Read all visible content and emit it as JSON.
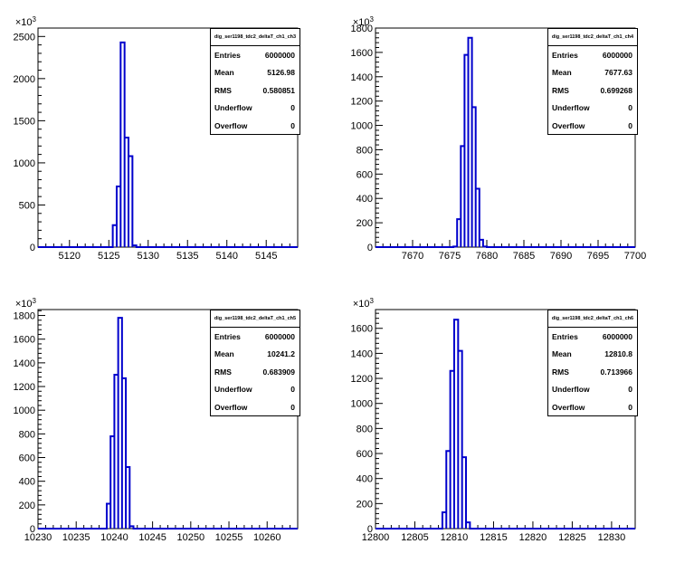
{
  "chart_data": [
    {
      "type": "histogram",
      "title": "",
      "xlabel": "",
      "ylabel": "",
      "y_multiplier": "×10^3",
      "xlim": [
        5116,
        5149
      ],
      "xticks": [
        5120,
        5125,
        5130,
        5135,
        5140,
        5145
      ],
      "ylim": [
        0,
        2600
      ],
      "yticks": [
        0,
        500,
        1000,
        1500,
        2000,
        2500
      ],
      "bins": [
        {
          "x": [
            5125.5,
            5126.0
          ],
          "y": 260
        },
        {
          "x": [
            5126.0,
            5126.5
          ],
          "y": 720
        },
        {
          "x": [
            5126.5,
            5127.0
          ],
          "y": 2430
        },
        {
          "x": [
            5127.0,
            5127.5
          ],
          "y": 1300
        },
        {
          "x": [
            5127.5,
            5128.0
          ],
          "y": 1080
        },
        {
          "x": [
            5128.0,
            5128.5
          ],
          "y": 20
        }
      ],
      "stats": {
        "name": "dig_ser1198_tdc2_deltaT_ch1_ch3",
        "entries": "6000000",
        "mean": "5126.98",
        "rms": "0.580851",
        "underflow": "0",
        "overflow": "0"
      }
    },
    {
      "type": "histogram",
      "title": "",
      "xlabel": "",
      "ylabel": "",
      "y_multiplier": "×10^3",
      "xlim": [
        7665,
        7700
      ],
      "xticks": [
        7670,
        7675,
        7680,
        7685,
        7690,
        7695,
        7700
      ],
      "ylim": [
        0,
        1800
      ],
      "yticks": [
        0,
        200,
        400,
        600,
        800,
        1000,
        1200,
        1400,
        1600,
        1800
      ],
      "bins": [
        {
          "x": [
            7675.5,
            7676.0
          ],
          "y": 5
        },
        {
          "x": [
            7676.0,
            7676.5
          ],
          "y": 230
        },
        {
          "x": [
            7676.5,
            7677.0
          ],
          "y": 830
        },
        {
          "x": [
            7677.0,
            7677.5
          ],
          "y": 1580
        },
        {
          "x": [
            7677.5,
            7678.0
          ],
          "y": 1720
        },
        {
          "x": [
            7678.0,
            7678.5
          ],
          "y": 1150
        },
        {
          "x": [
            7678.5,
            7679.0
          ],
          "y": 480
        },
        {
          "x": [
            7679.0,
            7679.5
          ],
          "y": 60
        },
        {
          "x": [
            7679.5,
            7680.0
          ],
          "y": 5
        }
      ],
      "stats": {
        "name": "dig_ser1198_tdc2_deltaT_ch1_ch4",
        "entries": "6000000",
        "mean": "7677.63",
        "rms": "0.699268",
        "underflow": "0",
        "overflow": "0"
      }
    },
    {
      "type": "histogram",
      "title": "",
      "xlabel": "",
      "ylabel": "",
      "y_multiplier": "×10^3",
      "xlim": [
        10230,
        10264
      ],
      "xticks": [
        10230,
        10235,
        10240,
        10245,
        10250,
        10255,
        10260
      ],
      "ylim": [
        0,
        1850
      ],
      "yticks": [
        0,
        200,
        400,
        600,
        800,
        1000,
        1200,
        1400,
        1600,
        1800
      ],
      "bins": [
        {
          "x": [
            10239.0,
            10239.5
          ],
          "y": 210
        },
        {
          "x": [
            10239.5,
            10240.0
          ],
          "y": 780
        },
        {
          "x": [
            10240.0,
            10240.5
          ],
          "y": 1300
        },
        {
          "x": [
            10240.5,
            10241.0
          ],
          "y": 1780
        },
        {
          "x": [
            10241.0,
            10241.5
          ],
          "y": 1270
        },
        {
          "x": [
            10241.5,
            10242.0
          ],
          "y": 520
        },
        {
          "x": [
            10242.0,
            10242.5
          ],
          "y": 20
        }
      ],
      "stats": {
        "name": "dig_ser1198_tdc2_deltaT_ch1_ch5",
        "entries": "6000000",
        "mean": "10241.2",
        "rms": "0.683909",
        "underflow": "0",
        "overflow": "0"
      }
    },
    {
      "type": "histogram",
      "title": "",
      "xlabel": "",
      "ylabel": "",
      "y_multiplier": "×10^3",
      "xlim": [
        12800,
        12833
      ],
      "xticks": [
        12800,
        12805,
        12810,
        12815,
        12820,
        12825,
        12830
      ],
      "ylim": [
        0,
        1750
      ],
      "yticks": [
        0,
        200,
        400,
        600,
        800,
        1000,
        1200,
        1400,
        1600
      ],
      "bins": [
        {
          "x": [
            12808.5,
            12809.0
          ],
          "y": 130
        },
        {
          "x": [
            12809.0,
            12809.5
          ],
          "y": 620
        },
        {
          "x": [
            12809.5,
            12810.0
          ],
          "y": 1260
        },
        {
          "x": [
            12810.0,
            12810.5
          ],
          "y": 1670
        },
        {
          "x": [
            12810.5,
            12811.0
          ],
          "y": 1420
        },
        {
          "x": [
            12811.0,
            12811.5
          ],
          "y": 570
        },
        {
          "x": [
            12811.5,
            12812.0
          ],
          "y": 50
        }
      ],
      "stats": {
        "name": "dig_ser1198_tdc2_deltaT_ch1_ch6",
        "entries": "6000000",
        "mean": "12810.8",
        "rms": "0.713966",
        "underflow": "0",
        "overflow": "0"
      }
    }
  ],
  "labels": {
    "entries": "Entries",
    "mean": "Mean",
    "rms": "RMS",
    "underflow": "Underflow",
    "overflow": "Overflow"
  },
  "colors": {
    "line": "#0000cc",
    "axis": "#000000"
  }
}
